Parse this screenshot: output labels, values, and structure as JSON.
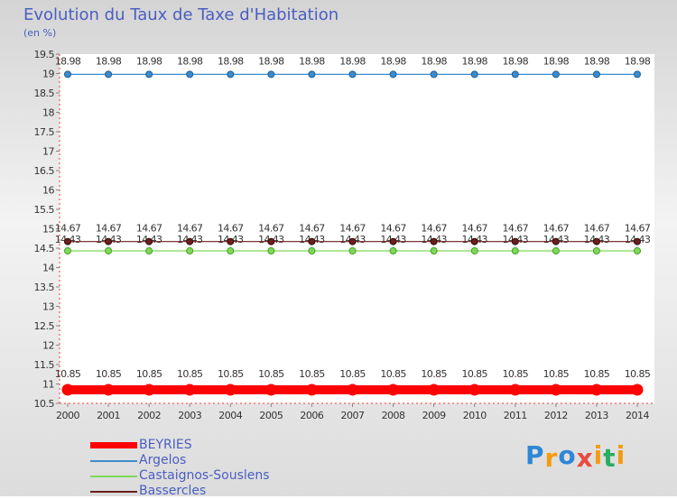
{
  "chart_data": {
    "type": "line",
    "title": "Evolution du Taux de Taxe d'Habitation",
    "ylabel": "(en %)",
    "x": [
      "2000",
      "2001",
      "2002",
      "2003",
      "2004",
      "2005",
      "2006",
      "2007",
      "2008",
      "2009",
      "2010",
      "2011",
      "2012",
      "2013",
      "2014"
    ],
    "ylim": [
      10.5,
      19.5
    ],
    "yticks": [
      "10.5",
      "11",
      "11.5",
      "12",
      "12.5",
      "13",
      "13.5",
      "14",
      "14.5",
      "15",
      "15.5",
      "16",
      "16.5",
      "17",
      "17.5",
      "18",
      "18.5",
      "19",
      "19.5"
    ],
    "grid": false,
    "legend_position": "bottom-left",
    "series": [
      {
        "name": "BEYRIES",
        "color": "#ff0000",
        "values": [
          10.85,
          10.85,
          10.85,
          10.85,
          10.85,
          10.85,
          10.85,
          10.85,
          10.85,
          10.85,
          10.85,
          10.85,
          10.85,
          10.85,
          10.85
        ],
        "labels": [
          "10.85",
          "10.85",
          "10.85",
          "10.85",
          "10.85",
          "10.85",
          "10.85",
          "10.85",
          "10.85",
          "10.85",
          "10.85",
          "10.85",
          "10.85",
          "10.85",
          "10.85"
        ]
      },
      {
        "name": "Argelos",
        "color": "#3d8ccc",
        "values": [
          18.98,
          18.98,
          18.98,
          18.98,
          18.98,
          18.98,
          18.98,
          18.98,
          18.98,
          18.98,
          18.98,
          18.98,
          18.98,
          18.98,
          18.98
        ],
        "labels": [
          "18.98",
          "18.98",
          "18.98",
          "18.98",
          "18.98",
          "18.98",
          "18.98",
          "18.98",
          "18.98",
          "18.98",
          "18.98",
          "18.98",
          "18.98",
          "18.98",
          "18.98"
        ]
      },
      {
        "name": "Castaignos-Souslens",
        "color": "#7ed957",
        "values": [
          14.43,
          14.43,
          14.43,
          14.43,
          14.43,
          14.43,
          14.43,
          14.43,
          14.43,
          14.43,
          14.43,
          14.43,
          14.43,
          14.43,
          14.43
        ],
        "labels": [
          "14.43",
          "14.43",
          "14.43",
          "14.43",
          "14.43",
          "14.43",
          "14.43",
          "14.43",
          "14.43",
          "14.43",
          "14.43",
          "14.43",
          "14.43",
          "14.43",
          "14.43"
        ]
      },
      {
        "name": "Bassercles",
        "color": "#6b1f1f",
        "values": [
          14.67,
          14.67,
          14.67,
          14.67,
          14.67,
          14.67,
          14.67,
          14.67,
          14.67,
          14.67,
          14.67,
          14.67,
          14.67,
          14.67,
          14.67
        ],
        "labels": [
          "14.67",
          "14.67",
          "14.67",
          "14.67",
          "14.67",
          "14.67",
          "14.67",
          "14.67",
          "14.67",
          "14.67",
          "14.67",
          "14.67",
          "14.67",
          "14.67",
          "14.67"
        ]
      }
    ]
  },
  "branding": {
    "logo_letters": [
      "P",
      "r",
      "o",
      "x",
      "i",
      "t",
      "i"
    ],
    "logo_colors": [
      "#2e86d6",
      "#f39c12",
      "#2e86d6",
      "#e74c3c",
      "#f39c12",
      "#27ae60",
      "#f39c12"
    ]
  }
}
